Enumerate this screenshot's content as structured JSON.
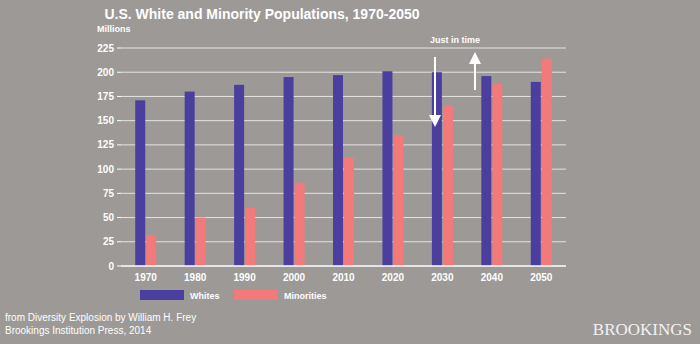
{
  "chart_data": {
    "type": "bar",
    "title": "U.S. White and Minority Populations, 1970-2050",
    "y_label": "Millions",
    "annotations": [
      "Just in time"
    ],
    "source": [
      "from Diversity Explosion by William H. Frey",
      "Brookings Institution Press, 2014"
    ],
    "logo": "BROOKINGS",
    "categories": [
      "1970",
      "1980",
      "1990",
      "2000",
      "2010",
      "2020",
      "2030",
      "2040",
      "2050"
    ],
    "series": [
      {
        "name": "Whites",
        "color": "#4a3f9f",
        "values": [
          171,
          180,
          187,
          195,
          197,
          201,
          200,
          196,
          190
        ]
      },
      {
        "name": "Minorities",
        "color": "#f27a7b",
        "values": [
          32,
          50,
          60,
          86,
          112,
          135,
          166,
          188,
          214
        ]
      }
    ],
    "ylim": [
      0,
      225
    ],
    "yticks": [
      0,
      25,
      50,
      75,
      100,
      125,
      150,
      175,
      200,
      225
    ],
    "grid": true,
    "legend": "bottom"
  }
}
